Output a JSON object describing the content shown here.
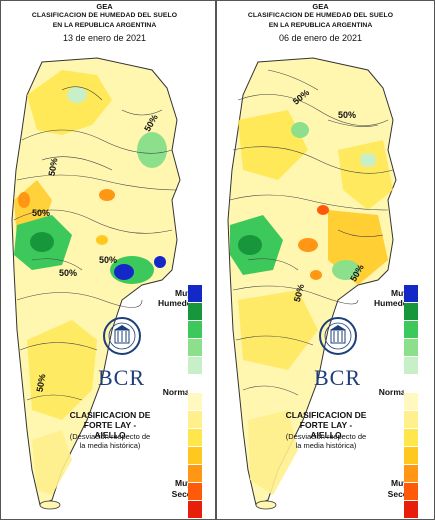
{
  "panels": [
    {
      "org": "GEA",
      "title1": "CLASIFICACION DE HUMEDAD DEL SUELO",
      "title2": "EN LA REPUBLICA ARGENTINA",
      "date": "13 de enero de 2021",
      "contour_labels": [
        "50%",
        "50%",
        "50%",
        "50%",
        "50%",
        "50%"
      ],
      "brand": "BCR",
      "credit_title1": "CLASIFICACION DE",
      "credit_title2": "FORTE LAY - AIELLO",
      "credit_note1": "(Desviación respecto de",
      "credit_note2": "la media histórica)",
      "legend_muy_top": "Muy",
      "legend_humedo": "Humedo",
      "legend_normal": "Normal",
      "legend_muy_bottom": "Muy",
      "legend_seco": "Seco"
    },
    {
      "org": "GEA",
      "title1": "CLASIFICACION DE HUMEDAD DEL SUELO",
      "title2": "EN LA REPUBLICA ARGENTINA",
      "date": "06 de enero de 2021",
      "contour_labels": [
        "50%",
        "50%",
        "50%",
        "50%"
      ],
      "brand": "BCR",
      "credit_title1": "CLASIFICACION DE",
      "credit_title2": "FORTE LAY - AIELLO",
      "credit_note1": "(Desviación respecto de",
      "credit_note2": "la media histórica)",
      "legend_muy_top": "Muy",
      "legend_humedo": "Humedo",
      "legend_normal": "Normal",
      "legend_muy_bottom": "Muy",
      "legend_seco": "Seco"
    }
  ],
  "legend_colors": [
    "#1428c8",
    "#18963c",
    "#3cc85a",
    "#8ce08c",
    "#c8f0c8",
    "#ffffff",
    "#fff8c0",
    "#fff08c",
    "#ffe64a",
    "#ffc81e",
    "#ff9614",
    "#ff5a0a",
    "#e61e0a"
  ]
}
